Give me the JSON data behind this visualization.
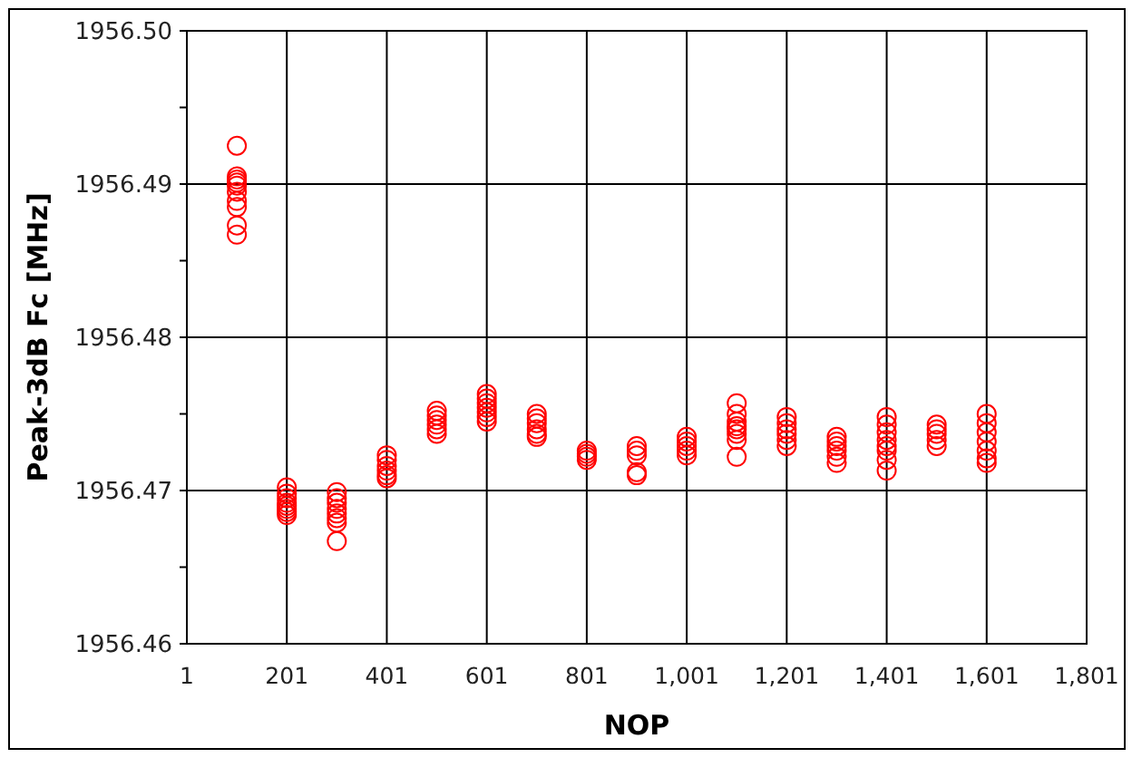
{
  "chart_data": {
    "type": "scatter",
    "xlabel": "NOP",
    "ylabel": "Peak-3dB Fc [MHz]",
    "marker": "circle",
    "grid": true,
    "xlim": [
      1,
      1801
    ],
    "xticks": [
      1,
      201,
      401,
      601,
      801,
      {
        "value": 1001,
        "label": "1,001"
      },
      {
        "value": 1201,
        "label": "1,201"
      },
      {
        "value": 1401,
        "label": "1,401"
      },
      {
        "value": 1601,
        "label": "1,601"
      },
      {
        "value": 1801,
        "label": "1,801"
      }
    ],
    "ylim": [
      1956.46,
      1956.5
    ],
    "yticks": [
      {
        "value": 1956.46,
        "label": "1956.46"
      },
      {
        "value": 1956.465,
        "label": null
      },
      {
        "value": 1956.47,
        "label": "1956.47"
      },
      {
        "value": 1956.475,
        "label": null
      },
      {
        "value": 1956.48,
        "label": "1956.48"
      },
      {
        "value": 1956.485,
        "label": null
      },
      {
        "value": 1956.49,
        "label": "1956.49"
      },
      {
        "value": 1956.495,
        "label": null
      },
      {
        "value": 1956.5,
        "label": "1956.50"
      }
    ],
    "series": [
      {
        "color": "#ff0000",
        "x": [
          101,
          101,
          101,
          101,
          101,
          101,
          101,
          101,
          101,
          101,
          201,
          201,
          201,
          201,
          201,
          201,
          201,
          201,
          301,
          301,
          301,
          301,
          301,
          301,
          301,
          301,
          401,
          401,
          401,
          401,
          401,
          401,
          501,
          501,
          501,
          501,
          501,
          501,
          601,
          601,
          601,
          601,
          601,
          601,
          601,
          701,
          701,
          701,
          701,
          701,
          701,
          801,
          801,
          801,
          801,
          901,
          901,
          901,
          901,
          901,
          1001,
          1001,
          1001,
          1001,
          1001,
          1101,
          1101,
          1101,
          1101,
          1101,
          1101,
          1101,
          1101,
          1201,
          1201,
          1201,
          1201,
          1201,
          1201,
          1301,
          1301,
          1301,
          1301,
          1301,
          1301,
          1401,
          1401,
          1401,
          1401,
          1401,
          1401,
          1401,
          1401,
          1501,
          1501,
          1501,
          1501,
          1501,
          1601,
          1601,
          1601,
          1601,
          1601,
          1601,
          1601
        ],
        "values": [
          1956.4925,
          1956.4905,
          1956.4903,
          1956.4901,
          1956.4899,
          1956.4895,
          1956.4889,
          1956.4885,
          1956.4873,
          1956.4867,
          1956.4702,
          1956.4698,
          1956.4695,
          1956.4692,
          1956.469,
          1956.4688,
          1956.4686,
          1956.4684,
          1956.4699,
          1956.4695,
          1956.4692,
          1956.4688,
          1956.4685,
          1956.4682,
          1956.4679,
          1956.4667,
          1956.4723,
          1956.472,
          1956.4716,
          1956.4713,
          1956.471,
          1956.4708,
          1956.4752,
          1956.4749,
          1956.4746,
          1956.4743,
          1956.474,
          1956.4737,
          1956.4763,
          1956.476,
          1956.4757,
          1956.4754,
          1956.4751,
          1956.4748,
          1956.4745,
          1956.475,
          1956.4747,
          1956.4744,
          1956.474,
          1956.4737,
          1956.4735,
          1956.4726,
          1956.4724,
          1956.4722,
          1956.472,
          1956.4729,
          1956.4726,
          1956.4723,
          1956.4712,
          1956.471,
          1956.4735,
          1956.4732,
          1956.4729,
          1956.4726,
          1956.4723,
          1956.4757,
          1956.475,
          1956.4745,
          1956.4742,
          1956.474,
          1956.4737,
          1956.4733,
          1956.4722,
          1956.4748,
          1956.4744,
          1956.474,
          1956.4737,
          1956.4733,
          1956.4729,
          1956.4735,
          1956.4732,
          1956.4729,
          1956.4726,
          1956.4722,
          1956.4718,
          1956.4748,
          1956.4743,
          1956.4738,
          1956.4733,
          1956.4729,
          1956.4726,
          1956.472,
          1956.4713,
          1956.4743,
          1956.474,
          1956.4737,
          1956.4733,
          1956.4729,
          1956.475,
          1956.4744,
          1956.4738,
          1956.4732,
          1956.4726,
          1956.4721,
          1956.4718
        ]
      }
    ]
  }
}
